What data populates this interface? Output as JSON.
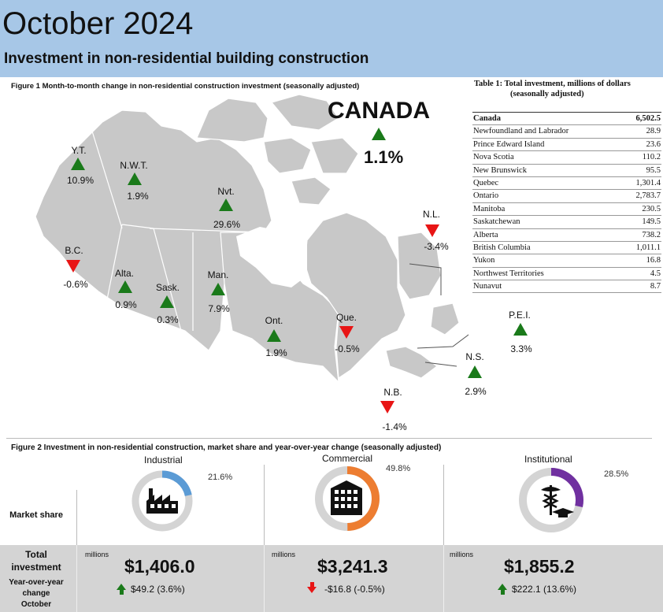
{
  "header": {
    "title": "October 2024",
    "subtitle": "Investment in non-residential building construction"
  },
  "figure1": {
    "caption": "Figure 1  Month-to-month change in non-residential construction investment (seasonally adjusted)",
    "canada": {
      "label": "CANADA",
      "value": "1.1%",
      "direction": "up"
    },
    "regions": [
      {
        "abbr": "Y.T.",
        "value": "10.9%",
        "direction": "up"
      },
      {
        "abbr": "N.W.T.",
        "value": "1.9%",
        "direction": "up"
      },
      {
        "abbr": "Nvt.",
        "value": "29.6%",
        "direction": "up"
      },
      {
        "abbr": "N.L.",
        "value": "-3.4%",
        "direction": "down"
      },
      {
        "abbr": "B.C.",
        "value": "-0.6%",
        "direction": "down"
      },
      {
        "abbr": "Alta.",
        "value": "0.9%",
        "direction": "up"
      },
      {
        "abbr": "Sask.",
        "value": "0.3%",
        "direction": "up"
      },
      {
        "abbr": "Man.",
        "value": "7.9%",
        "direction": "up"
      },
      {
        "abbr": "Ont.",
        "value": "1.9%",
        "direction": "up"
      },
      {
        "abbr": "Que.",
        "value": "-0.5%",
        "direction": "down"
      },
      {
        "abbr": "P.E.I.",
        "value": "3.3%",
        "direction": "up"
      },
      {
        "abbr": "N.S.",
        "value": "2.9%",
        "direction": "up"
      },
      {
        "abbr": "N.B.",
        "value": "-1.4%",
        "direction": "down"
      }
    ],
    "colors": {
      "up": "#1a7a1a",
      "down": "#e81515",
      "land": "#c8c8c8",
      "background": "#ffffff"
    }
  },
  "table1": {
    "title_line1": "Table 1: Total investment, millions of dollars",
    "title_line2": "(seasonally adjusted)",
    "rows": [
      {
        "name": "Canada",
        "value": "6,502.5"
      },
      {
        "name": "Newfoundland and Labrador",
        "value": "28.9"
      },
      {
        "name": "Prince Edward Island",
        "value": "23.6"
      },
      {
        "name": "Nova Scotia",
        "value": "110.2"
      },
      {
        "name": "New Brunswick",
        "value": "95.5"
      },
      {
        "name": "Quebec",
        "value": "1,301.4"
      },
      {
        "name": "Ontario",
        "value": "2,783.7"
      },
      {
        "name": "Manitoba",
        "value": "230.5"
      },
      {
        "name": "Saskatchewan",
        "value": "149.5"
      },
      {
        "name": "Alberta",
        "value": "738.2"
      },
      {
        "name": "British Columbia",
        "value": "1,011.1"
      },
      {
        "name": "Yukon",
        "value": "16.8"
      },
      {
        "name": "Northwest Territories",
        "value": "4.5"
      },
      {
        "name": "Nunavut",
        "value": "8.7"
      }
    ]
  },
  "figure2": {
    "caption": "Figure 2 Investment in non-residential construction, market share and year-over-year change (seasonally adjusted)",
    "row_labels": {
      "market_share": "Market share",
      "total_line1": "Total",
      "total_line2": "investment",
      "yoy_line1": "Year-over-year",
      "yoy_line2": "change",
      "yoy_line3": "October"
    },
    "sectors": [
      {
        "name": "Industrial",
        "share_label": "21.6%",
        "share": 0.216,
        "color": "#5b9bd5",
        "icon": "factory-icon",
        "units": "millions",
        "amount": "$1,406.0",
        "yoy": "$49.2 (3.6%)",
        "yoy_direction": "up"
      },
      {
        "name": "Commercial",
        "share_label": "49.8%",
        "share": 0.498,
        "color": "#ed7d31",
        "icon": "office-building-icon",
        "units": "millions",
        "amount": "$3,241.3",
        "yoy": "-$16.8 (-0.5%)",
        "yoy_direction": "down"
      },
      {
        "name": "Institutional",
        "share_label": "28.5%",
        "share": 0.285,
        "color": "#7030a0",
        "icon": "caduceus-icon",
        "units": "millions",
        "amount": "$1,855.2",
        "yoy": "$222.1 (13.6%)",
        "yoy_direction": "up"
      }
    ]
  }
}
